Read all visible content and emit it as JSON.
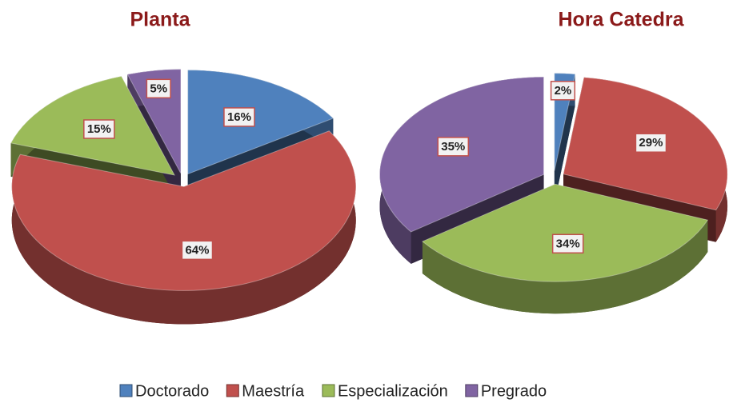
{
  "chart_data": [
    {
      "type": "pie",
      "title": "Planta",
      "values": [
        16,
        64,
        15,
        5
      ],
      "value_labels": [
        "16%",
        "64%",
        "15%",
        "5%"
      ]
    },
    {
      "type": "pie",
      "title": "Hora Catedra",
      "values": [
        2,
        29,
        34,
        35
      ],
      "value_labels": [
        "2%",
        "29%",
        "34%",
        "35%"
      ]
    }
  ],
  "legend": {
    "labels": [
      "Doctorado",
      "Maestría",
      "Especialización",
      "Pregrado"
    ],
    "colors": [
      "#4f81bd",
      "#c0504d",
      "#9bbb59",
      "#8064a2"
    ]
  }
}
